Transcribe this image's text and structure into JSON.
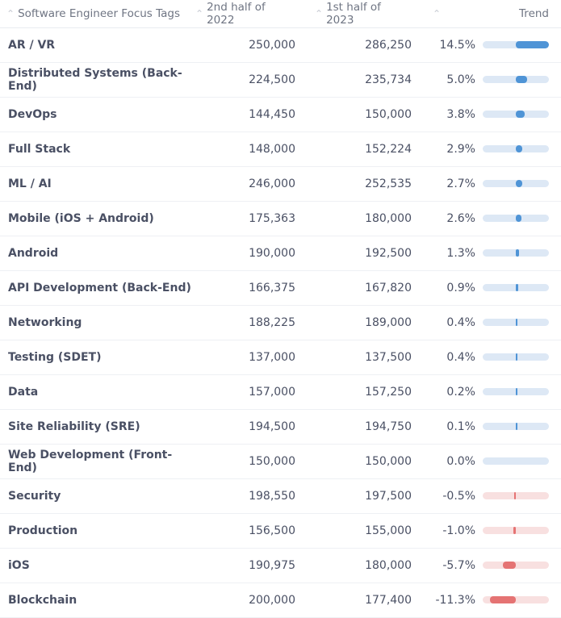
{
  "header": {
    "col_tag": "Software Engineer Focus Tags",
    "col_h2_2022": "2nd half of 2022",
    "col_h1_2023": "1st half of 2023",
    "col_pct": "",
    "col_trend": "Trend",
    "sort_icon": "caret-up-icon"
  },
  "colors": {
    "positive": "#4f94d6",
    "negative": "#e57373",
    "positive_track": "#dde8f5",
    "negative_track": "#f8e0e0"
  },
  "rows": [
    {
      "tag": "AR / VR",
      "h2_2022": "250,000",
      "h1_2023": "286,250",
      "pct": "14.5%",
      "trend": 14.5
    },
    {
      "tag": "Distributed Systems (Back-End)",
      "h2_2022": "224,500",
      "h1_2023": "235,734",
      "pct": "5.0%",
      "trend": 5.0
    },
    {
      "tag": "DevOps",
      "h2_2022": "144,450",
      "h1_2023": "150,000",
      "pct": "3.8%",
      "trend": 3.8
    },
    {
      "tag": "Full Stack",
      "h2_2022": "148,000",
      "h1_2023": "152,224",
      "pct": "2.9%",
      "trend": 2.9
    },
    {
      "tag": "ML / AI",
      "h2_2022": "246,000",
      "h1_2023": "252,535",
      "pct": "2.7%",
      "trend": 2.7
    },
    {
      "tag": "Mobile (iOS + Android)",
      "h2_2022": "175,363",
      "h1_2023": "180,000",
      "pct": "2.6%",
      "trend": 2.6
    },
    {
      "tag": "Android",
      "h2_2022": "190,000",
      "h1_2023": "192,500",
      "pct": "1.3%",
      "trend": 1.3
    },
    {
      "tag": "API Development (Back-End)",
      "h2_2022": "166,375",
      "h1_2023": "167,820",
      "pct": "0.9%",
      "trend": 0.9
    },
    {
      "tag": "Networking",
      "h2_2022": "188,225",
      "h1_2023": "189,000",
      "pct": "0.4%",
      "trend": 0.4
    },
    {
      "tag": "Testing (SDET)",
      "h2_2022": "137,000",
      "h1_2023": "137,500",
      "pct": "0.4%",
      "trend": 0.4
    },
    {
      "tag": "Data",
      "h2_2022": "157,000",
      "h1_2023": "157,250",
      "pct": "0.2%",
      "trend": 0.2
    },
    {
      "tag": "Site Reliability (SRE)",
      "h2_2022": "194,500",
      "h1_2023": "194,750",
      "pct": "0.1%",
      "trend": 0.1
    },
    {
      "tag": "Web Development (Front-End)",
      "h2_2022": "150,000",
      "h1_2023": "150,000",
      "pct": "0.0%",
      "trend": 0.0
    },
    {
      "tag": "Security",
      "h2_2022": "198,550",
      "h1_2023": "197,500",
      "pct": "-0.5%",
      "trend": -0.5
    },
    {
      "tag": "Production",
      "h2_2022": "156,500",
      "h1_2023": "155,000",
      "pct": "-1.0%",
      "trend": -1.0
    },
    {
      "tag": "iOS",
      "h2_2022": "190,975",
      "h1_2023": "180,000",
      "pct": "-5.7%",
      "trend": -5.7
    },
    {
      "tag": "Blockchain",
      "h2_2022": "200,000",
      "h1_2023": "177,400",
      "pct": "-11.3%",
      "trend": -11.3
    }
  ]
}
